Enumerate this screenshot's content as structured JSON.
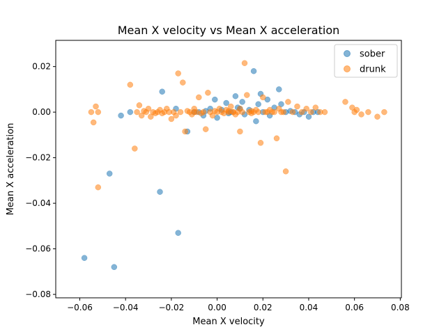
{
  "chart_data": {
    "type": "scatter",
    "title": "Mean X velocity vs Mean X acceleration",
    "xlabel": "Mean X velocity",
    "ylabel": "Mean X acceleration",
    "xlim": [
      -0.0705,
      0.0805
    ],
    "ylim": [
      -0.0815,
      0.0315
    ],
    "x_ticks": [
      -0.06,
      -0.04,
      -0.02,
      0.0,
      0.02,
      0.04,
      0.06,
      0.08
    ],
    "x_tick_labels": [
      "−0.06",
      "−0.04",
      "−0.02",
      "0.00",
      "0.02",
      "0.04",
      "0.06",
      "0.08"
    ],
    "y_ticks": [
      -0.08,
      -0.06,
      -0.04,
      -0.02,
      0.0,
      0.02
    ],
    "y_tick_labels": [
      "−0.08",
      "−0.06",
      "−0.04",
      "−0.02",
      "0.00",
      "0.02"
    ],
    "grid": false,
    "legend_position": "top-right",
    "series": [
      {
        "name": "sober",
        "color": "#1f77b4",
        "points": [
          [
            -0.058,
            -0.064
          ],
          [
            -0.045,
            -0.068
          ],
          [
            -0.047,
            -0.027
          ],
          [
            -0.025,
            -0.035
          ],
          [
            -0.017,
            -0.053
          ],
          [
            -0.042,
            -0.0015
          ],
          [
            -0.038,
            0.0
          ],
          [
            -0.024,
            0.009
          ],
          [
            -0.018,
            0.0015
          ],
          [
            -0.013,
            -0.0085
          ],
          [
            -0.01,
            0.0
          ],
          [
            -0.006,
            -0.0015
          ],
          [
            -0.003,
            0.0015
          ],
          [
            -0.001,
            0.0055
          ],
          [
            0.0,
            -0.0025
          ],
          [
            0.002,
            0.001
          ],
          [
            0.004,
            0.004
          ],
          [
            0.006,
            0.0
          ],
          [
            0.008,
            0.007
          ],
          [
            0.009,
            0.002
          ],
          [
            0.011,
            0.0045
          ],
          [
            0.012,
            -0.001
          ],
          [
            0.014,
            0.001
          ],
          [
            0.016,
            0.018
          ],
          [
            0.017,
            -0.004
          ],
          [
            0.018,
            0.0035
          ],
          [
            0.019,
            0.008
          ],
          [
            0.02,
            0.0
          ],
          [
            0.022,
            0.0055
          ],
          [
            0.023,
            -0.0015
          ],
          [
            0.025,
            0.002
          ],
          [
            0.027,
            0.01
          ],
          [
            0.028,
            0.0035
          ],
          [
            0.03,
            0.0
          ],
          [
            0.032,
            0.0005
          ],
          [
            0.034,
            0.0
          ],
          [
            0.036,
            -0.001
          ],
          [
            0.038,
            0.0
          ],
          [
            0.04,
            -0.002
          ],
          [
            0.042,
            0.0
          ],
          [
            0.044,
            0.0
          ],
          [
            -0.005,
            0.0005
          ],
          [
            -0.008,
            0.0
          ],
          [
            0.005,
            -0.0005
          ],
          [
            0.01,
            0.0015
          ]
        ]
      },
      {
        "name": "drunk",
        "color": "#ff7f0e",
        "points": [
          [
            -0.055,
            0.0
          ],
          [
            -0.054,
            -0.0045
          ],
          [
            -0.053,
            0.0025
          ],
          [
            -0.052,
            0.0
          ],
          [
            -0.052,
            -0.033
          ],
          [
            -0.038,
            0.012
          ],
          [
            -0.036,
            -0.016
          ],
          [
            -0.035,
            0.0
          ],
          [
            -0.034,
            0.003
          ],
          [
            -0.033,
            -0.0015
          ],
          [
            -0.032,
            0.0005
          ],
          [
            -0.031,
            0.0
          ],
          [
            -0.03,
            0.0015
          ],
          [
            -0.029,
            -0.002
          ],
          [
            -0.028,
            0.0
          ],
          [
            -0.027,
            -0.0005
          ],
          [
            -0.026,
            0.0
          ],
          [
            -0.025,
            0.001
          ],
          [
            -0.024,
            -0.0005
          ],
          [
            -0.023,
            0.0
          ],
          [
            -0.022,
            0.0015
          ],
          [
            -0.021,
            0.0
          ],
          [
            -0.02,
            -0.003
          ],
          [
            -0.019,
            0.0
          ],
          [
            -0.018,
            -0.0015
          ],
          [
            -0.017,
            0.017
          ],
          [
            -0.016,
            0.0
          ],
          [
            -0.015,
            0.013
          ],
          [
            -0.014,
            -0.0085
          ],
          [
            -0.013,
            0.0005
          ],
          [
            -0.012,
            0.0
          ],
          [
            -0.011,
            -0.001
          ],
          [
            -0.01,
            0.0015
          ],
          [
            -0.009,
            0.0
          ],
          [
            -0.008,
            0.0065
          ],
          [
            -0.007,
            -0.0005
          ],
          [
            -0.006,
            0.0
          ],
          [
            -0.005,
            -0.0075
          ],
          [
            -0.004,
            0.0085
          ],
          [
            -0.003,
            0.0
          ],
          [
            -0.002,
            -0.0015
          ],
          [
            -0.001,
            0.0005
          ],
          [
            0.0,
            0.0
          ],
          [
            0.001,
            0.0015
          ],
          [
            0.002,
            0.0
          ],
          [
            0.003,
            -0.0005
          ],
          [
            0.004,
            0.001
          ],
          [
            0.005,
            0.0
          ],
          [
            0.006,
            0.0025
          ],
          [
            0.007,
            0.0
          ],
          [
            0.008,
            -0.001
          ],
          [
            0.009,
            0.0
          ],
          [
            0.01,
            0.0015
          ],
          [
            0.011,
            0.0
          ],
          [
            0.012,
            0.0215
          ],
          [
            0.013,
            0.0075
          ],
          [
            0.014,
            0.0
          ],
          [
            0.015,
            -0.0005
          ],
          [
            0.016,
            0.0
          ],
          [
            0.017,
            0.001
          ],
          [
            0.018,
            0.0
          ],
          [
            0.019,
            -0.0135
          ],
          [
            0.02,
            0.0065
          ],
          [
            0.021,
            0.0
          ],
          [
            0.022,
            0.0
          ],
          [
            0.023,
            0.001
          ],
          [
            0.024,
            0.0
          ],
          [
            0.025,
            0.0
          ],
          [
            0.026,
            -0.0115
          ],
          [
            0.027,
            0.0015
          ],
          [
            0.028,
            0.0
          ],
          [
            0.029,
            0.0
          ],
          [
            0.03,
            -0.026
          ],
          [
            0.031,
            0.0045
          ],
          [
            0.033,
            0.0
          ],
          [
            0.035,
            0.0025
          ],
          [
            0.037,
            0.0
          ],
          [
            0.039,
            0.0015
          ],
          [
            0.041,
            0.0
          ],
          [
            0.043,
            0.002
          ],
          [
            0.045,
            0.0
          ],
          [
            0.047,
            0.0
          ],
          [
            0.056,
            0.0045
          ],
          [
            0.059,
            0.002
          ],
          [
            0.06,
            0.0
          ],
          [
            0.061,
            0.001
          ],
          [
            0.063,
            -0.001
          ],
          [
            0.066,
            0.0
          ],
          [
            0.07,
            -0.002
          ],
          [
            0.073,
            0.0
          ],
          [
            0.005,
            0.0005
          ],
          [
            0.007,
            0.0
          ],
          [
            -0.01,
            0.0
          ],
          [
            0.015,
            0.0005
          ],
          [
            0.01,
            -0.0085
          ]
        ]
      }
    ]
  }
}
